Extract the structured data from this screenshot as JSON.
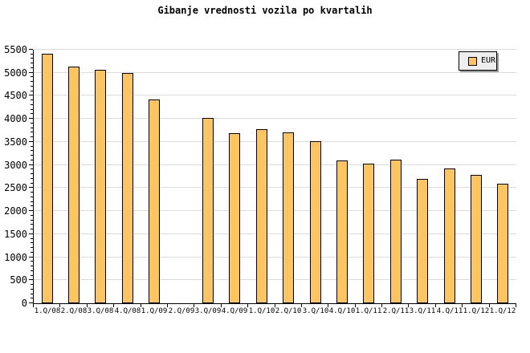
{
  "title": "Gibanje vrednosti vozila po kvartalih",
  "legend": {
    "label": "EUR"
  },
  "colors": {
    "background": "#FFFFFF",
    "bar_fill": "#FCC55F",
    "bar_border": "#000000",
    "gridline": "#DCDCDC",
    "axis": "#000000",
    "legend_bg": "#EEEEEE",
    "legend_shadow": "#9A9A9A",
    "text": "#000000"
  },
  "chart_data": {
    "type": "bar",
    "title": "Gibanje vrednosti vozila po kvartalih",
    "categories": [
      "1.Q/08",
      "2.Q/08",
      "3.Q/08",
      "4.Q/08",
      "1.Q/09",
      "2.Q/09",
      "3.Q/09",
      "4.Q/09",
      "1.Q/10",
      "2.Q/10",
      "3.Q/10",
      "4.Q/10",
      "1.Q/11",
      "2.Q/11",
      "3.Q/11",
      "4.Q/11",
      "1.Q/12",
      "1.Q/12"
    ],
    "series": [
      {
        "name": "EUR",
        "values": [
          5410,
          5140,
          5060,
          4990,
          4420,
          null,
          4020,
          3690,
          3780,
          3700,
          3520,
          3100,
          3030,
          3110,
          2690,
          2920,
          2780,
          2600
        ]
      }
    ],
    "xlabel": "",
    "ylabel": "",
    "ylim": [
      0,
      5500
    ],
    "y_ticks": [
      0,
      500,
      1000,
      1500,
      2000,
      2500,
      3000,
      3500,
      4000,
      4500,
      5000,
      5500
    ],
    "y_minor_tick_step": 100,
    "grid": "horizontal-only",
    "legend_position": "top-right-inside",
    "notes": "no bar drawn for 2.Q/09"
  }
}
